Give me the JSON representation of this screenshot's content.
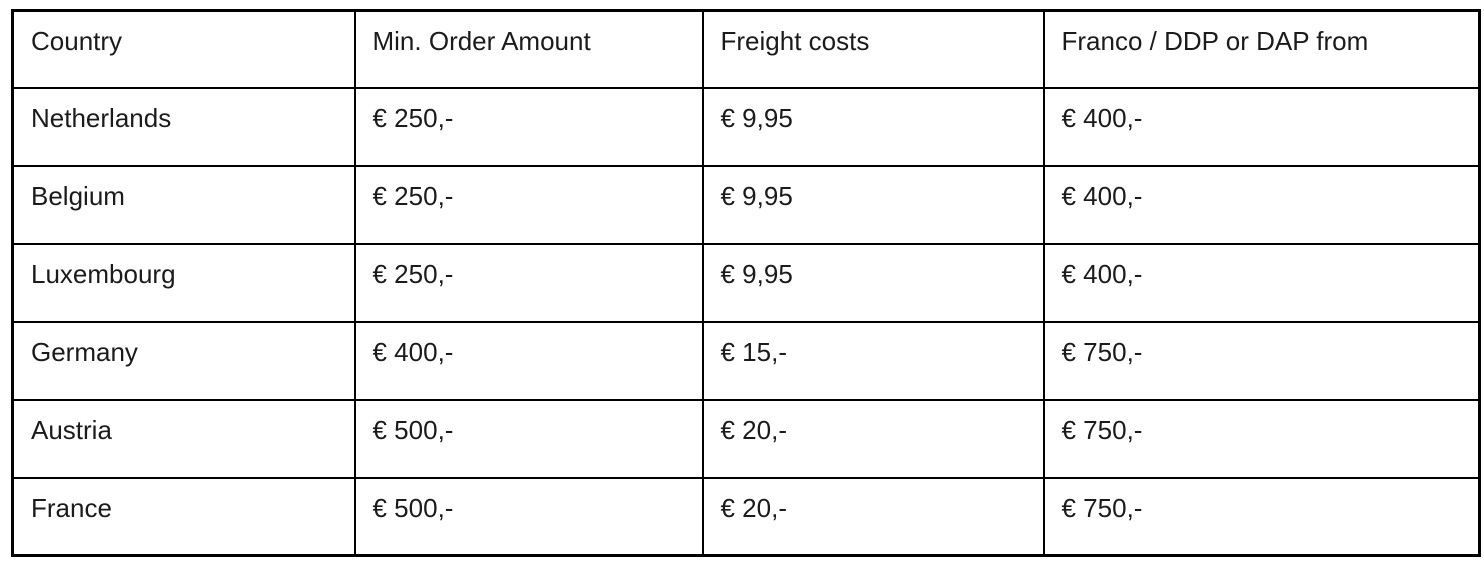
{
  "table": {
    "columns": [
      "Country",
      "Min. Order Amount",
      "Freight costs",
      "Franco / DDP or DAP from"
    ],
    "rows": [
      [
        "Netherlands",
        "€ 250,-",
        "€ 9,95",
        "€ 400,-"
      ],
      [
        "Belgium",
        "€ 250,-",
        "€ 9,95",
        "€ 400,-"
      ],
      [
        "Luxembourg",
        "€ 250,-",
        "€ 9,95",
        "€ 400,-"
      ],
      [
        "Germany",
        "€ 400,-",
        "€ 15,-",
        "€ 750,-"
      ],
      [
        "Austria",
        "€ 500,-",
        "€ 20,-",
        "€ 750,-"
      ],
      [
        "France",
        "€ 500,-",
        "€ 20,-",
        "€ 750,-"
      ]
    ],
    "border_color": "#000000",
    "text_color": "#1b1b1b",
    "background_color": "#ffffff"
  }
}
